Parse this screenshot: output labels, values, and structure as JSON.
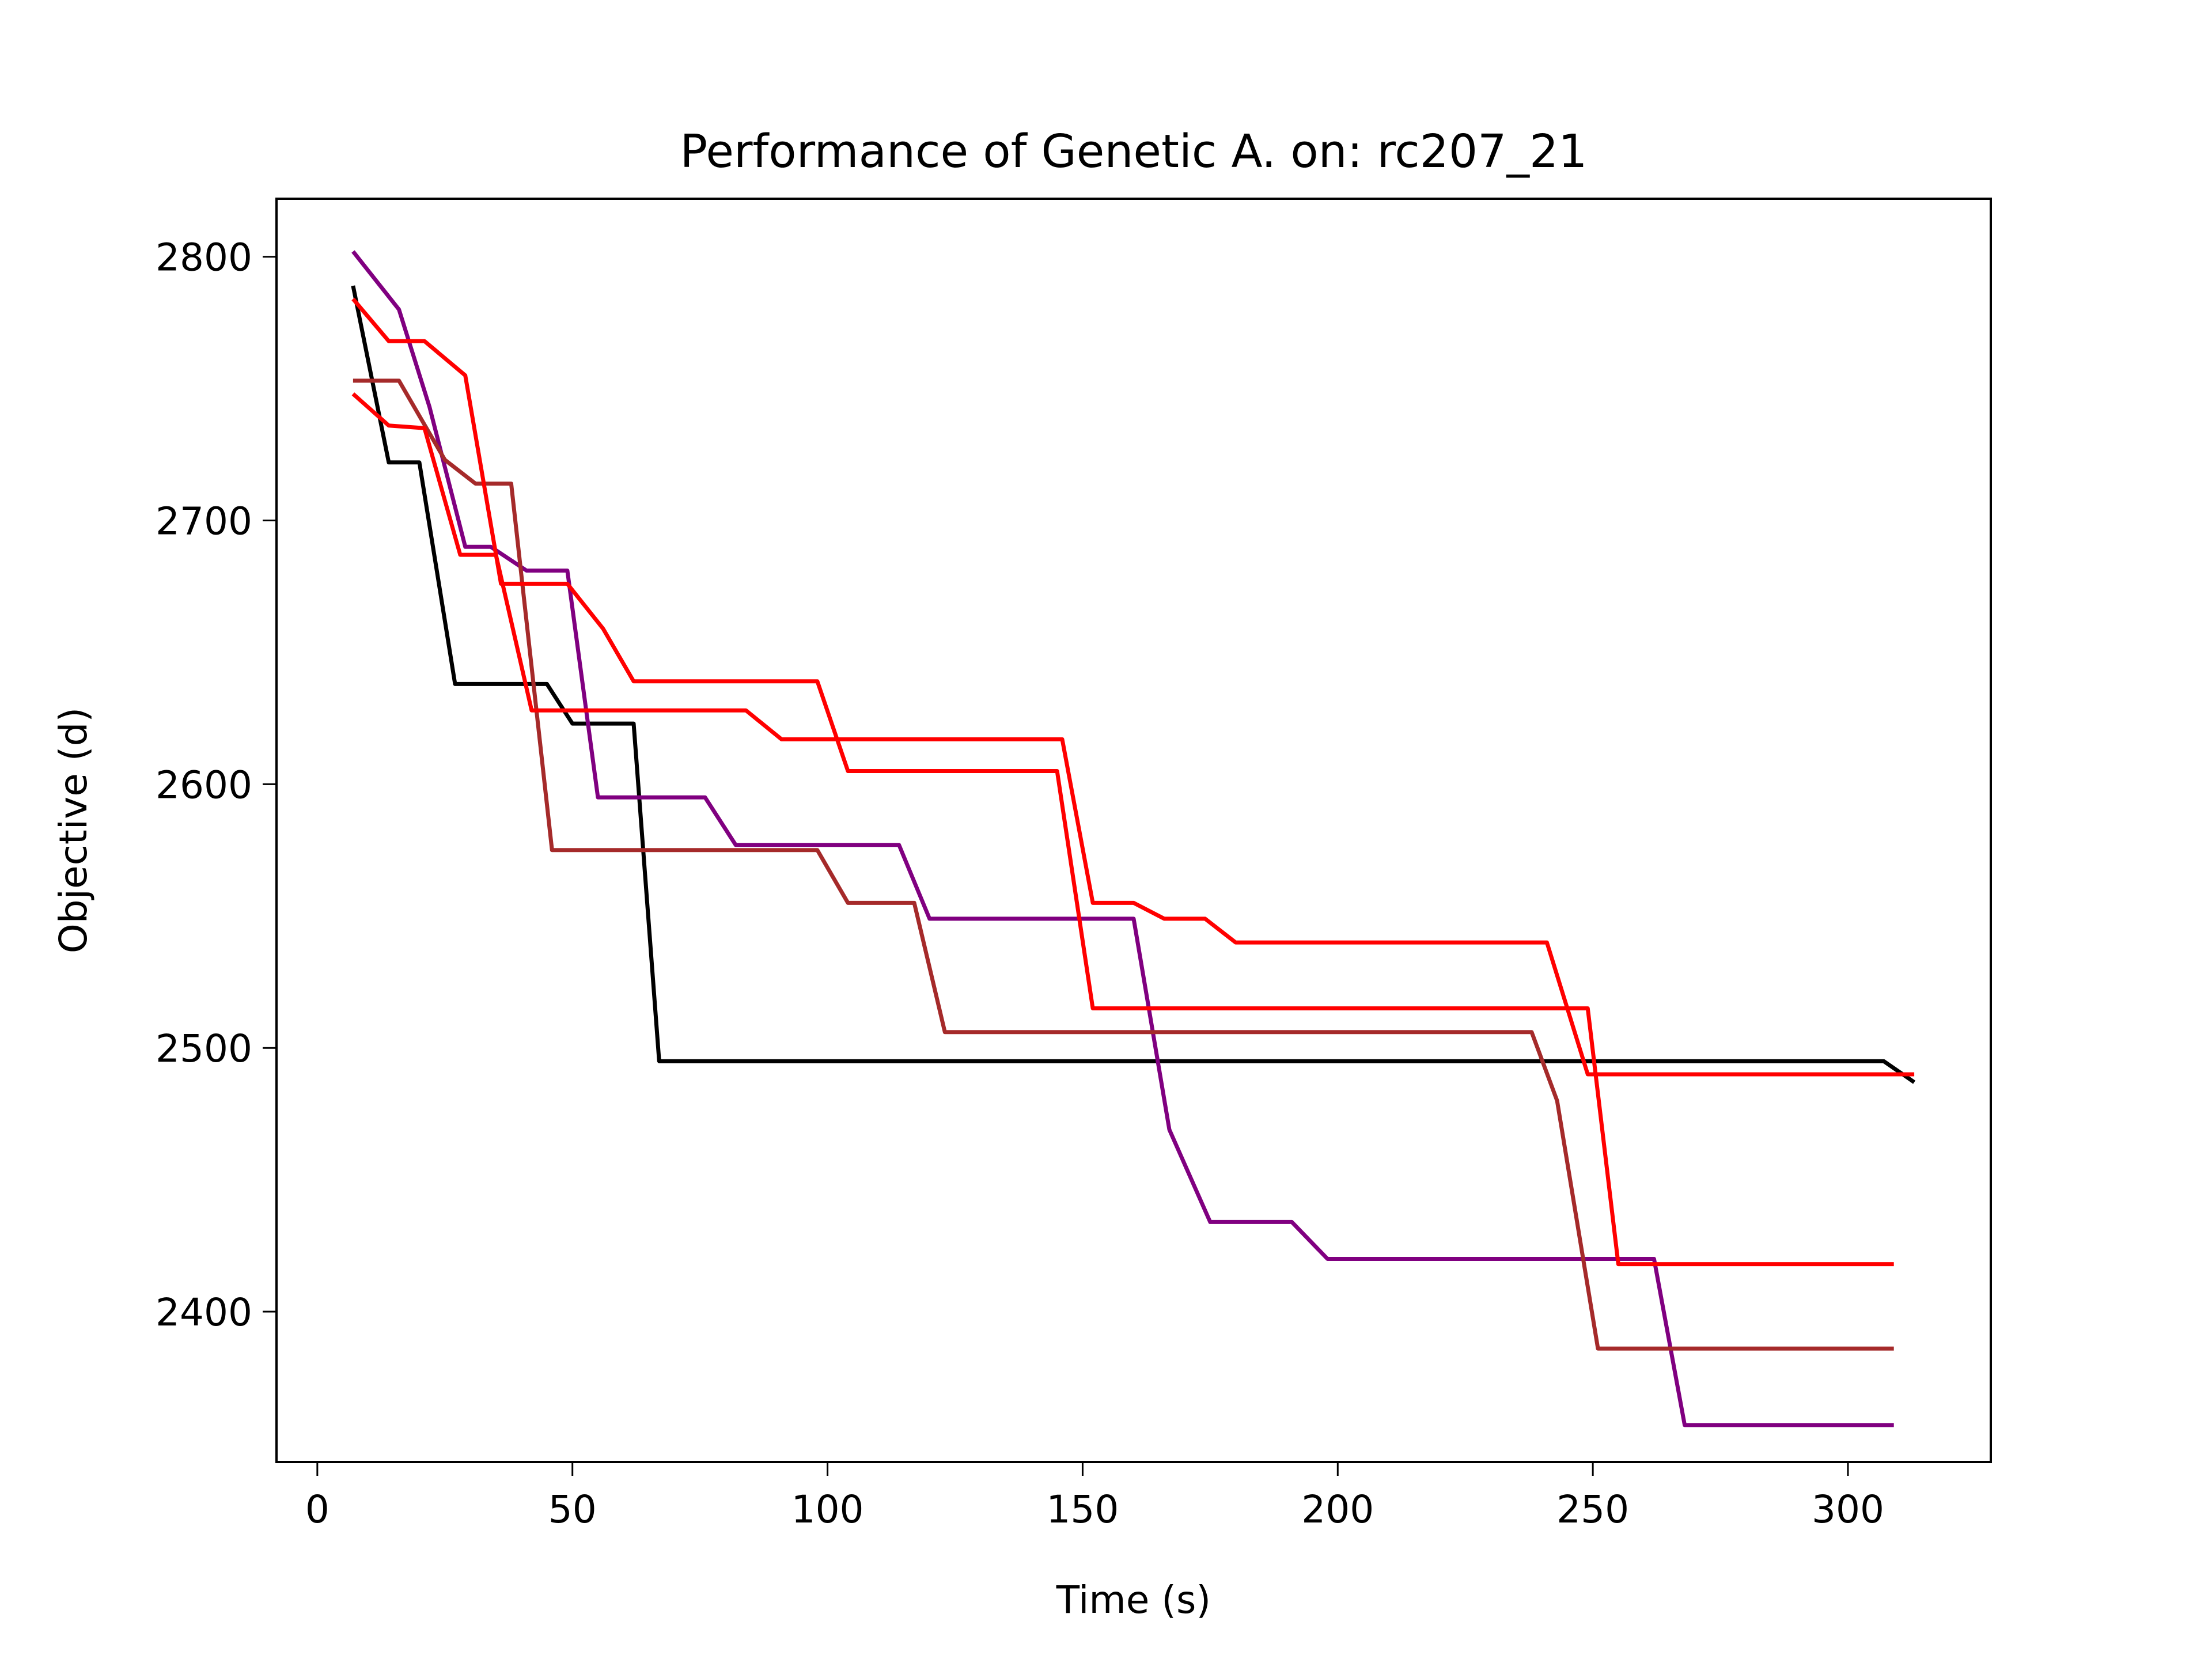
{
  "chart_data": {
    "type": "line",
    "title": "Performance of Genetic A. on: rc207_21",
    "xlabel": "Time (s)",
    "ylabel": "Objective (d)",
    "xlim": [
      -8,
      328
    ],
    "ylim": [
      2343,
      2822
    ],
    "xticks": [
      0,
      50,
      100,
      150,
      200,
      250,
      300
    ],
    "yticks": [
      2400,
      2500,
      2600,
      2700,
      2800
    ],
    "grid": false,
    "legend": "none",
    "series": [
      {
        "color": "#000000",
        "points": [
          [
            7,
            2789
          ],
          [
            14,
            2722
          ],
          [
            20,
            2722
          ],
          [
            27,
            2638
          ],
          [
            45,
            2638
          ],
          [
            50,
            2623
          ],
          [
            62,
            2623
          ],
          [
            67,
            2495
          ],
          [
            307,
            2495
          ],
          [
            313,
            2487
          ]
        ]
      },
      {
        "color": "#800080",
        "points": [
          [
            7,
            2802
          ],
          [
            16,
            2780
          ],
          [
            22,
            2743
          ],
          [
            29,
            2690
          ],
          [
            34,
            2690
          ],
          [
            41,
            2681
          ],
          [
            49,
            2681
          ],
          [
            55,
            2595
          ],
          [
            76,
            2595
          ],
          [
            82,
            2577
          ],
          [
            114,
            2577
          ],
          [
            120,
            2549
          ],
          [
            160,
            2549
          ],
          [
            167,
            2469
          ],
          [
            175,
            2434
          ],
          [
            191,
            2434
          ],
          [
            198,
            2420
          ],
          [
            262,
            2420
          ],
          [
            268,
            2357
          ],
          [
            309,
            2357
          ]
        ]
      },
      {
        "color": "#a52a2a",
        "points": [
          [
            7,
            2753
          ],
          [
            16,
            2753
          ],
          [
            25,
            2723
          ],
          [
            31,
            2714
          ],
          [
            38,
            2714
          ],
          [
            46,
            2575
          ],
          [
            98,
            2575
          ],
          [
            104,
            2555
          ],
          [
            117,
            2555
          ],
          [
            123,
            2506
          ],
          [
            238,
            2506
          ],
          [
            243,
            2480
          ],
          [
            251,
            2386
          ],
          [
            309,
            2386
          ]
        ]
      },
      {
        "color": "#ff0000",
        "points": [
          [
            7,
            2784
          ],
          [
            14,
            2768
          ],
          [
            21,
            2768
          ],
          [
            29,
            2755
          ],
          [
            36,
            2676
          ],
          [
            49,
            2676
          ],
          [
            56,
            2659
          ],
          [
            62,
            2639
          ],
          [
            98,
            2639
          ],
          [
            104,
            2605
          ],
          [
            145,
            2605
          ],
          [
            152,
            2515
          ],
          [
            249,
            2515
          ],
          [
            255,
            2418
          ],
          [
            309,
            2418
          ]
        ]
      },
      {
        "color": "#ff0000",
        "points": [
          [
            7,
            2748
          ],
          [
            14,
            2736
          ],
          [
            21,
            2735
          ],
          [
            28,
            2687
          ],
          [
            35,
            2687
          ],
          [
            42,
            2628
          ],
          [
            84,
            2628
          ],
          [
            91,
            2617
          ],
          [
            146,
            2617
          ],
          [
            152,
            2555
          ],
          [
            160,
            2555
          ],
          [
            166,
            2549
          ],
          [
            174,
            2549
          ],
          [
            180,
            2540
          ],
          [
            241,
            2540
          ],
          [
            249,
            2490
          ],
          [
            313,
            2490
          ]
        ]
      }
    ]
  }
}
